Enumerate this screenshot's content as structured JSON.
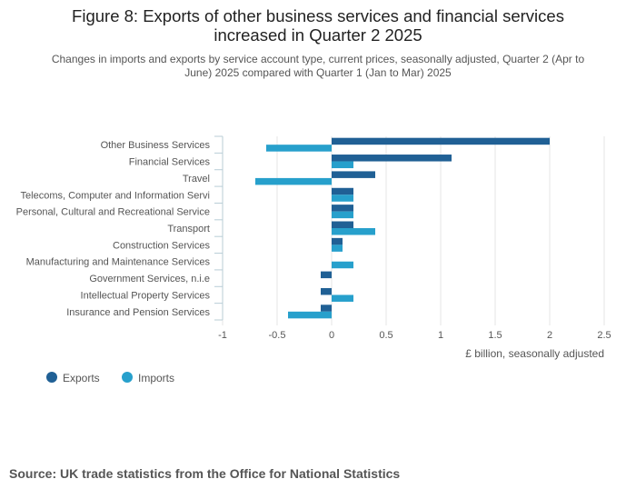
{
  "title": "Figure 8: Exports of other business services and financial services increased in Quarter 2 2025",
  "title_line1": "Figure 8: Exports of other business services and financial services",
  "title_line2": "increased in Quarter 2 2025",
  "subtitle_line1": "Changes in imports and exports by service account type, current prices, seasonally adjusted, Quarter 2 (Apr to",
  "subtitle_line2": "June) 2025 compared with Quarter 1 (Jan to Mar) 2025",
  "source": "Source: UK trade statistics from the Office for National Statistics",
  "colors": {
    "exports": "#206095",
    "imports": "#27a0cc",
    "grid": "#e4e4e4",
    "tick": "#b8cdd6"
  },
  "chart_data": {
    "type": "bar",
    "orientation": "horizontal",
    "categories": [
      "Other Business Services",
      "Financial Services",
      "Travel",
      "Telecoms, Computer and Information Servi",
      "Personal, Cultural and Recreational Service",
      "Transport",
      "Construction Services",
      "Manufacturing and Maintenance Services",
      "Government Services, n.i.e",
      "Intellectual Property Services",
      "Insurance and Pension Services"
    ],
    "series": [
      {
        "name": "Exports",
        "color": "#206095",
        "values": [
          2.0,
          1.1,
          0.4,
          0.2,
          0.2,
          0.2,
          0.1,
          0.0,
          -0.1,
          -0.1,
          -0.1
        ]
      },
      {
        "name": "Imports",
        "color": "#27a0cc",
        "values": [
          -0.6,
          0.2,
          -0.7,
          0.2,
          0.2,
          0.4,
          0.1,
          0.2,
          0.0,
          0.2,
          -0.4
        ]
      }
    ],
    "xlim": [
      -1,
      2.5
    ],
    "xticks": [
      "-1",
      "-0.5",
      "0",
      "0.5",
      "1",
      "1.5",
      "2",
      "2.5"
    ],
    "xtick_values": [
      -1,
      -0.5,
      0,
      0.5,
      1,
      1.5,
      2,
      2.5
    ],
    "xlabel": "£ billion, seasonally adjusted",
    "ylabel": "",
    "grid": true,
    "legend": "bottom-left"
  }
}
